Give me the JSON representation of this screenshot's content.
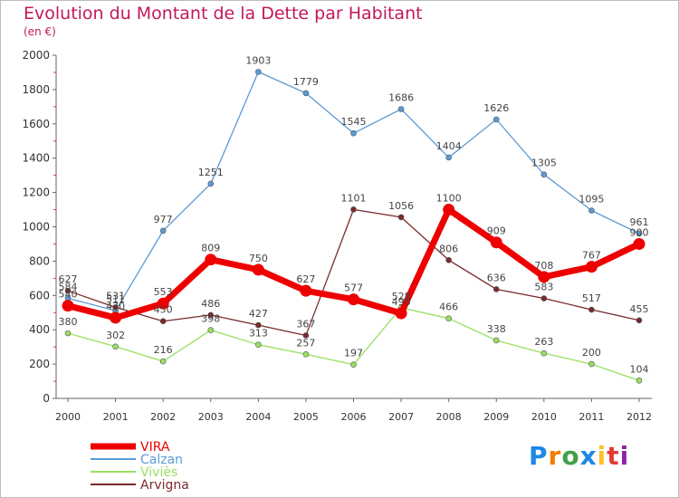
{
  "chart_data": {
    "type": "line",
    "title": "Evolution du Montant de la Dette par Habitant",
    "unit": "(en €)",
    "x": [
      "2000",
      "2001",
      "2002",
      "2003",
      "2004",
      "2005",
      "2006",
      "2007",
      "2008",
      "2009",
      "2010",
      "2011",
      "2012"
    ],
    "ylim": [
      0,
      2000
    ],
    "yticks": [
      "0",
      "200",
      "400",
      "600",
      "800",
      "1000",
      "1200",
      "1400",
      "1600",
      "1800",
      "2000"
    ],
    "grid": false,
    "legend": "bottom-left",
    "series": [
      {
        "name": "VIRA",
        "color": "#ee0000",
        "values": [
          540,
          470,
          553,
          809,
          750,
          627,
          577,
          496,
          1100,
          909,
          708,
          767,
          900
        ],
        "labels": [
          "540",
          "470",
          "553",
          "809",
          "750",
          "627",
          "577",
          "496",
          "1100",
          "909",
          "708",
          "767",
          "900"
        ]
      },
      {
        "name": "Calzan",
        "color": "#5b9bd5",
        "values": [
          584,
          511,
          977,
          1251,
          1903,
          1779,
          1545,
          1686,
          1404,
          1626,
          1305,
          1095,
          961
        ],
        "labels": [
          "584",
          "511",
          "977",
          "1251",
          "1903",
          "1779",
          "1545",
          "1686",
          "1404",
          "1626",
          "1305",
          "1095",
          "961"
        ]
      },
      {
        "name": "Viviès",
        "color": "#99e060",
        "values": [
          380,
          302,
          216,
          398,
          313,
          257,
          197,
          528,
          466,
          338,
          263,
          200,
          104
        ],
        "labels": [
          "380",
          "302",
          "216",
          "398",
          "313",
          "257",
          "197",
          "528",
          "466",
          "338",
          "263",
          "200",
          "104"
        ]
      },
      {
        "name": "Arvigna",
        "color": "#7a2a2a",
        "values": [
          627,
          531,
          450,
          486,
          427,
          367,
          1101,
          1056,
          806,
          636,
          583,
          517,
          455
        ],
        "labels": [
          "627",
          "531",
          "450",
          "486",
          "427",
          "367",
          "1101",
          "1056",
          "806",
          "636",
          "583",
          "517",
          "455"
        ]
      }
    ]
  },
  "logo": {
    "letters": [
      "P",
      "r",
      "o",
      "x",
      "i",
      "t",
      "i"
    ],
    "colors": [
      "#1e88e5",
      "#f57c00",
      "#43a047",
      "#1e88e5",
      "#fbc02d",
      "#e53935",
      "#8e24aa"
    ]
  }
}
